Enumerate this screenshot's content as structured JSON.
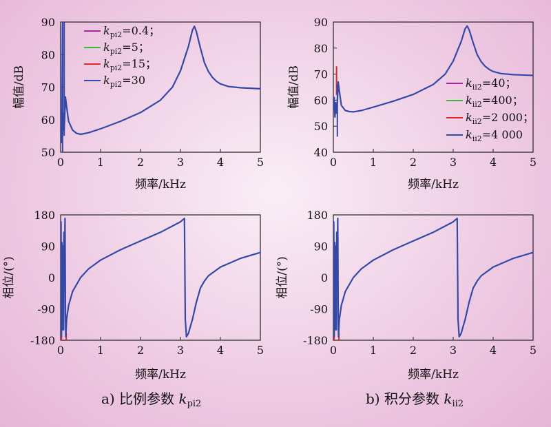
{
  "captions": {
    "a_prefix": "a) 比例参数 ",
    "a_var": "k",
    "a_sub": "pi2",
    "b_prefix": "b) 积分参数 ",
    "b_var": "k",
    "b_sub": "ii2"
  },
  "chart_data": [
    {
      "id": "a-mag",
      "type": "line",
      "xlabel": "频率/kHz",
      "ylabel": "幅值/dB",
      "xlim": [
        0,
        5
      ],
      "ylim": [
        50,
        90
      ],
      "xticks": [
        "0",
        "1",
        "2",
        "3",
        "4",
        "5"
      ],
      "yticks": [
        "50",
        "60",
        "70",
        "80",
        "90"
      ],
      "legend": "top-left",
      "series": [
        {
          "name": "kpi2=0.4；",
          "var": "k",
          "sub": "pi2",
          "val": "=0.4；",
          "color": "#a3289c"
        },
        {
          "name": "kpi2=5；",
          "var": "k",
          "sub": "pi2",
          "val": "=5；",
          "color": "#3fb53f"
        },
        {
          "name": "kpi2=15；",
          "var": "k",
          "sub": "pi2",
          "val": "=15；",
          "color": "#e32626"
        },
        {
          "name": "kpi2=30",
          "var": "k",
          "sub": "pi2",
          "val": "=30",
          "color": "#3349a8"
        }
      ],
      "points": [
        [
          0.0,
          89
        ],
        [
          0.02,
          53
        ],
        [
          0.04,
          60
        ],
        [
          0.055,
          57
        ],
        [
          0.07,
          62
        ],
        [
          0.085,
          56.5
        ],
        [
          0.1,
          60
        ],
        [
          0.12,
          67
        ],
        [
          0.15,
          64
        ],
        [
          0.2,
          59.5
        ],
        [
          0.3,
          56.8
        ],
        [
          0.4,
          55.8
        ],
        [
          0.5,
          55.5
        ],
        [
          0.7,
          56
        ],
        [
          1.0,
          57.2
        ],
        [
          1.5,
          59.5
        ],
        [
          2.0,
          62.2
        ],
        [
          2.5,
          66
        ],
        [
          2.8,
          70
        ],
        [
          3.0,
          75
        ],
        [
          3.2,
          82.5
        ],
        [
          3.3,
          87.5
        ],
        [
          3.35,
          88.7
        ],
        [
          3.4,
          87
        ],
        [
          3.5,
          82
        ],
        [
          3.6,
          77.5
        ],
        [
          3.7,
          74.8
        ],
        [
          3.8,
          73
        ],
        [
          3.9,
          71.8
        ],
        [
          4.0,
          71
        ],
        [
          4.2,
          70.2
        ],
        [
          4.5,
          69.8
        ],
        [
          5.0,
          69.5
        ]
      ],
      "spikes": [
        {
          "x": 0.05,
          "ymin": 50,
          "ymax": 90,
          "color": "#3349a8"
        },
        {
          "x": 0.09,
          "ymin": 55,
          "ymax": 90,
          "color": "#3349a8"
        }
      ]
    },
    {
      "id": "b-mag",
      "type": "line",
      "xlabel": "频率/kHz",
      "ylabel": "幅值/dB",
      "xlim": [
        0,
        5
      ],
      "ylim": [
        40,
        90
      ],
      "xticks": [
        "0",
        "1",
        "2",
        "3",
        "4",
        "5"
      ],
      "yticks": [
        "40",
        "50",
        "60",
        "70",
        "80",
        "90"
      ],
      "legend": "bottom-right",
      "series": [
        {
          "name": "kii2=40；",
          "var": "k",
          "sub": "ii2",
          "val": "=40；",
          "color": "#a3289c"
        },
        {
          "name": "kii2=400；",
          "var": "k",
          "sub": "ii2",
          "val": "=400；",
          "color": "#3fb53f"
        },
        {
          "name": "kii2=2 000；",
          "var": "k",
          "sub": "ii2",
          "val": "=2 000；",
          "color": "#e32626"
        },
        {
          "name": "kii2=4 000",
          "var": "k",
          "sub": "ii2",
          "val": "=4 000",
          "color": "#3349a8"
        }
      ],
      "points": [
        [
          0.0,
          56
        ],
        [
          0.02,
          61
        ],
        [
          0.04,
          53.5
        ],
        [
          0.06,
          59
        ],
        [
          0.08,
          55
        ],
        [
          0.1,
          59
        ],
        [
          0.12,
          67
        ],
        [
          0.15,
          63.5
        ],
        [
          0.2,
          58
        ],
        [
          0.3,
          56
        ],
        [
          0.4,
          55.6
        ],
        [
          0.5,
          55.5
        ],
        [
          0.7,
          56
        ],
        [
          1.0,
          57.3
        ],
        [
          1.5,
          59.6
        ],
        [
          2.0,
          62.2
        ],
        [
          2.5,
          66
        ],
        [
          2.8,
          70
        ],
        [
          3.0,
          75
        ],
        [
          3.2,
          82.5
        ],
        [
          3.3,
          87.5
        ],
        [
          3.35,
          88.5
        ],
        [
          3.4,
          87
        ],
        [
          3.5,
          82
        ],
        [
          3.6,
          77.5
        ],
        [
          3.7,
          74.8
        ],
        [
          3.8,
          73
        ],
        [
          3.9,
          71.8
        ],
        [
          4.0,
          71
        ],
        [
          4.2,
          70.2
        ],
        [
          4.5,
          69.8
        ],
        [
          5.0,
          69.5
        ]
      ],
      "spikes": [
        {
          "x": 0.08,
          "ymin": 62,
          "ymax": 73,
          "color": "#e32626"
        },
        {
          "x": 0.1,
          "ymin": 46,
          "ymax": 66,
          "color": "#3349a8"
        }
      ]
    },
    {
      "id": "a-phase",
      "type": "line",
      "xlabel": "频率/kHz",
      "ylabel": "相位/(°)",
      "xlim": [
        0,
        5
      ],
      "ylim": [
        -180,
        180
      ],
      "xticks": [
        "0",
        "1",
        "2",
        "3",
        "4",
        "5"
      ],
      "yticks": [
        "-180",
        "-90",
        "0",
        "90",
        "180"
      ],
      "series": [
        {
          "name": "kpi2=30",
          "color": "#3349a8"
        }
      ],
      "points": [
        [
          0.0,
          -20
        ],
        [
          0.01,
          160
        ],
        [
          0.02,
          -170
        ],
        [
          0.035,
          100
        ],
        [
          0.05,
          -150
        ],
        [
          0.065,
          90
        ],
        [
          0.075,
          -150
        ],
        [
          0.085,
          130
        ],
        [
          0.1,
          40
        ],
        [
          0.11,
          170
        ],
        [
          0.12,
          -100
        ],
        [
          0.13,
          -170
        ],
        [
          0.15,
          -120
        ],
        [
          0.2,
          -80
        ],
        [
          0.3,
          -40
        ],
        [
          0.5,
          0
        ],
        [
          0.7,
          25
        ],
        [
          1.0,
          50
        ],
        [
          1.5,
          80
        ],
        [
          2.0,
          105
        ],
        [
          2.5,
          130
        ],
        [
          3.0,
          160
        ],
        [
          3.1,
          170
        ],
        [
          3.12,
          -120
        ],
        [
          3.15,
          -170
        ],
        [
          3.2,
          -160
        ],
        [
          3.3,
          -120
        ],
        [
          3.4,
          -70
        ],
        [
          3.5,
          -30
        ],
        [
          3.6,
          -10
        ],
        [
          3.7,
          5
        ],
        [
          4.0,
          30
        ],
        [
          4.5,
          55
        ],
        [
          5.0,
          72
        ]
      ],
      "spikes": [
        {
          "x": 0.14,
          "ymin": -180,
          "ymax": -160,
          "color": "#e32626"
        },
        {
          "x": 0.02,
          "ymin": -180,
          "ymax": -150,
          "color": "#e32626"
        }
      ]
    },
    {
      "id": "b-phase",
      "type": "line",
      "xlabel": "频率/kHz",
      "ylabel": "相位/(°)",
      "xlim": [
        0,
        5
      ],
      "ylim": [
        -180,
        180
      ],
      "xticks": [
        "0",
        "1",
        "2",
        "3",
        "4",
        "5"
      ],
      "yticks": [
        "-180",
        "-90",
        "0",
        "90",
        "180"
      ],
      "series": [
        {
          "name": "kii2=4 000",
          "color": "#3349a8"
        }
      ],
      "points": [
        [
          0.0,
          -20
        ],
        [
          0.01,
          160
        ],
        [
          0.02,
          -170
        ],
        [
          0.035,
          100
        ],
        [
          0.05,
          -150
        ],
        [
          0.065,
          90
        ],
        [
          0.075,
          -150
        ],
        [
          0.085,
          130
        ],
        [
          0.1,
          40
        ],
        [
          0.11,
          170
        ],
        [
          0.12,
          -100
        ],
        [
          0.13,
          -170
        ],
        [
          0.15,
          -120
        ],
        [
          0.2,
          -80
        ],
        [
          0.3,
          -40
        ],
        [
          0.5,
          0
        ],
        [
          0.7,
          25
        ],
        [
          1.0,
          50
        ],
        [
          1.5,
          80
        ],
        [
          2.0,
          105
        ],
        [
          2.5,
          130
        ],
        [
          3.0,
          160
        ],
        [
          3.1,
          170
        ],
        [
          3.12,
          -120
        ],
        [
          3.15,
          -170
        ],
        [
          3.2,
          -160
        ],
        [
          3.3,
          -120
        ],
        [
          3.4,
          -70
        ],
        [
          3.5,
          -30
        ],
        [
          3.6,
          -10
        ],
        [
          3.7,
          5
        ],
        [
          4.0,
          30
        ],
        [
          4.5,
          55
        ],
        [
          5.0,
          72
        ]
      ],
      "spikes": [
        {
          "x": 0.14,
          "ymin": -180,
          "ymax": -160,
          "color": "#e32626"
        },
        {
          "x": 0.02,
          "ymin": -180,
          "ymax": -150,
          "color": "#e32626"
        }
      ]
    }
  ]
}
